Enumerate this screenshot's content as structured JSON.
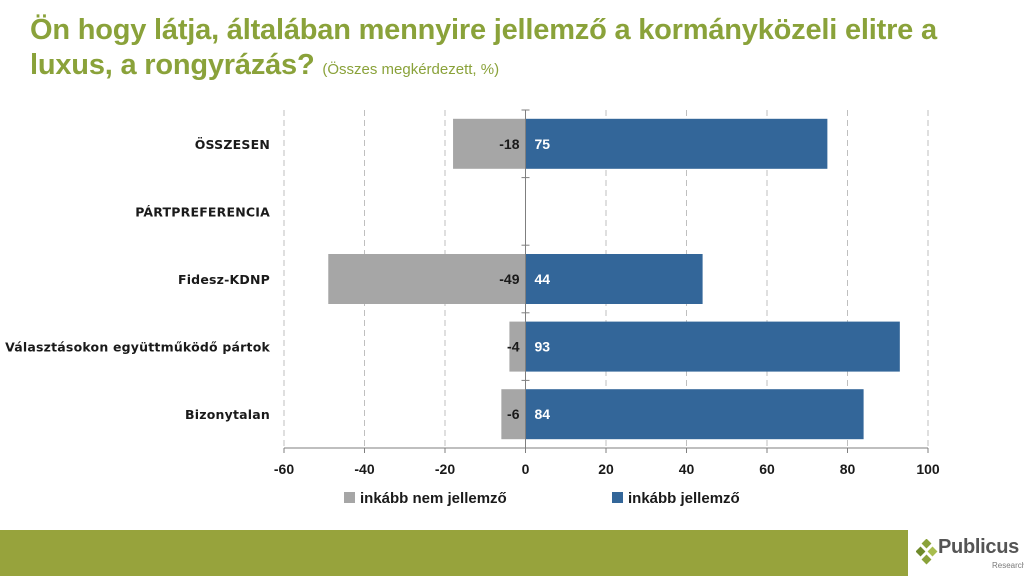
{
  "title": {
    "main": "Ön hogy látja, általában mennyire jellemző a kormányközeli elitre a luxus, a rongyrázás?",
    "sub": "(Összes megkérdezett, %)"
  },
  "chart_data": {
    "type": "bar",
    "orientation": "horizontal",
    "stacked": "diverging",
    "categories": [
      "ÖSSZESEN",
      "PÁRTPREFERENCIA",
      "Fidesz-KDNP",
      "Választásokon együttműködő pártok",
      "Bizonytalan"
    ],
    "series": [
      {
        "name": "inkább nem jellemző",
        "values": [
          -18,
          null,
          -49,
          -4,
          -6
        ],
        "color": "#A6A6A6"
      },
      {
        "name": "inkább jellemző",
        "values": [
          75,
          null,
          44,
          93,
          84
        ],
        "color": "#336699"
      }
    ],
    "xlim": [
      -60,
      100
    ],
    "xticks": [
      -60,
      -40,
      -20,
      0,
      20,
      40,
      60,
      80,
      100
    ],
    "grid": "vertical dashed",
    "legend": "bottom"
  },
  "brand": {
    "name": "Publicus",
    "tagline": "Research",
    "accent": "#97A33C",
    "title_color": "#8AA23A"
  }
}
